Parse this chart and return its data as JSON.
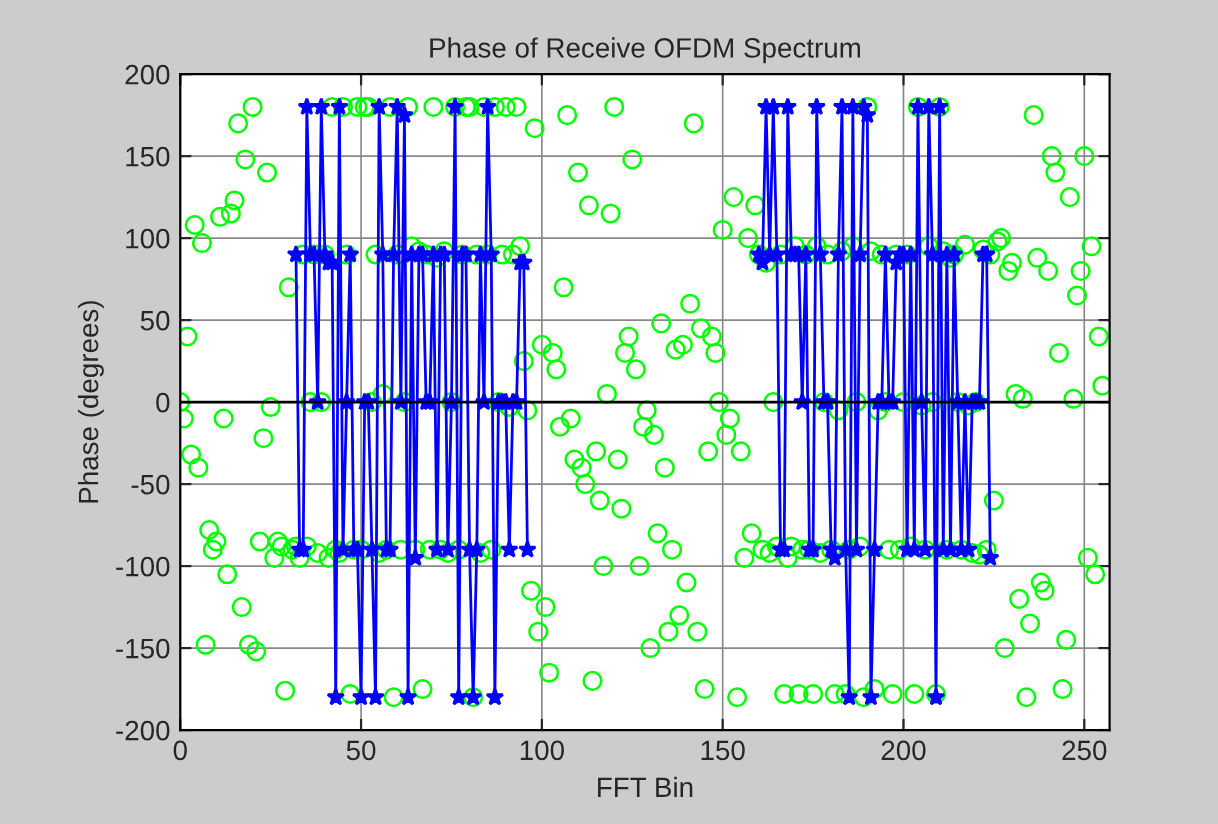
{
  "chart_data": {
    "type": "scatter",
    "x": [
      0,
      1,
      2,
      3,
      4,
      5,
      6,
      7,
      8,
      9,
      10,
      11,
      12,
      13,
      14,
      15,
      16,
      17,
      18,
      19,
      20,
      21,
      22,
      23,
      24,
      25,
      26,
      27,
      28,
      29,
      30,
      31,
      32,
      33,
      34,
      35,
      36,
      37,
      38,
      39,
      40,
      41,
      42,
      43,
      44,
      45,
      46,
      47,
      48,
      49,
      50,
      51,
      52,
      53,
      54,
      55,
      56,
      57,
      58,
      59,
      60,
      61,
      62,
      63,
      64,
      65,
      66,
      67,
      68,
      69,
      70,
      71,
      72,
      73,
      74,
      75,
      76,
      77,
      78,
      79,
      80,
      81,
      82,
      83,
      84,
      85,
      86,
      87,
      88,
      89,
      90,
      91,
      92,
      93,
      94,
      95,
      96,
      97,
      98,
      99,
      100,
      101,
      102,
      103,
      104,
      105,
      106,
      107,
      108,
      109,
      110,
      111,
      112,
      113,
      114,
      115,
      116,
      117,
      118,
      119,
      120,
      121,
      122,
      123,
      124,
      125,
      126,
      127,
      128,
      129,
      130,
      131,
      132,
      133,
      134,
      135,
      136,
      137,
      138,
      139,
      140,
      141,
      142,
      143,
      144,
      145,
      146,
      147,
      148,
      149,
      150,
      151,
      152,
      153,
      154,
      155,
      156,
      157,
      158,
      159,
      160,
      161,
      162,
      163,
      164,
      165,
      166,
      167,
      168,
      169,
      170,
      171,
      172,
      173,
      174,
      175,
      176,
      177,
      178,
      179,
      180,
      181,
      182,
      183,
      184,
      185,
      186,
      187,
      188,
      189,
      190,
      191,
      192,
      193,
      194,
      195,
      196,
      197,
      198,
      199,
      200,
      201,
      202,
      203,
      204,
      205,
      206,
      207,
      208,
      209,
      210,
      211,
      212,
      213,
      214,
      215,
      216,
      217,
      218,
      219,
      220,
      221,
      222,
      223,
      224,
      225,
      226,
      227,
      228,
      229,
      230,
      231,
      232,
      233,
      234,
      235,
      236,
      237,
      238,
      239,
      240,
      241,
      242,
      243,
      244,
      245,
      246,
      247,
      248,
      249,
      250,
      251,
      252,
      253,
      254,
      255
    ],
    "title": "Phase of Receive OFDM Spectrum",
    "xlabel": "FFT Bin",
    "ylabel": "Phase (degrees)",
    "xlim": [
      0,
      257
    ],
    "xticks": [
      0,
      50,
      100,
      150,
      200,
      250
    ],
    "ylim": [
      -200,
      200
    ],
    "yticks": [
      -200,
      -150,
      -100,
      -50,
      0,
      50,
      100,
      150,
      200
    ],
    "grid": true,
    "ref_lines": [
      {
        "axis": "y",
        "value": 0,
        "color": "#000000"
      }
    ],
    "series": [
      {
        "color": "#00ff00",
        "marker": "circle",
        "values": [
          0,
          -10,
          40,
          -32,
          108,
          -40,
          97,
          -148,
          -78,
          -90,
          -85,
          113,
          -10,
          -105,
          115,
          123,
          170,
          -125,
          148,
          -148,
          180,
          -152,
          -85,
          -22,
          140,
          -3,
          -95,
          -85,
          -88,
          -176,
          70,
          -90,
          -88,
          -95,
          90,
          -88,
          0,
          90,
          -92,
          0,
          90,
          -95,
          180,
          -90,
          -92,
          180,
          90,
          -178,
          -90,
          180,
          -90,
          180,
          180,
          0,
          90,
          -92,
          5,
          -90,
          180,
          -180,
          90,
          -90,
          0,
          180,
          95,
          -90,
          92,
          -175,
          90,
          -90,
          180,
          88,
          -90,
          92,
          -92,
          0,
          180,
          -90,
          90,
          180,
          180,
          -180,
          90,
          -92,
          180,
          90,
          -90,
          180,
          0,
          90,
          180,
          -3,
          90,
          180,
          95,
          25,
          -5,
          -115,
          167,
          -140,
          35,
          -125,
          -165,
          30,
          20,
          -15,
          70,
          175,
          -10,
          -35,
          140,
          -40,
          -50,
          120,
          -170,
          -30,
          -60,
          -100,
          5,
          115,
          180,
          -35,
          -65,
          30,
          40,
          148,
          20,
          -100,
          -15,
          -5,
          -150,
          -20,
          -80,
          48,
          -40,
          -140,
          -90,
          32,
          -130,
          35,
          -110,
          60,
          170,
          -140,
          45,
          -175,
          -30,
          40,
          30,
          0,
          105,
          -20,
          -10,
          125,
          -180,
          -30,
          -95,
          100,
          -80,
          120,
          90,
          -90,
          85,
          -92,
          0,
          -88,
          90,
          -178,
          -95,
          -88,
          95,
          -178,
          -90,
          90,
          -90,
          -178,
          95,
          -92,
          0,
          90,
          -90,
          -178,
          -5,
          92,
          -178,
          -90,
          95,
          0,
          -88,
          -180,
          180,
          92,
          -175,
          -5,
          90,
          0,
          -90,
          -178,
          90,
          -90,
          0,
          90,
          -88,
          -178,
          180,
          -2,
          -90,
          95,
          0,
          -178,
          180,
          92,
          -90,
          88,
          90,
          0,
          -90,
          96,
          -2,
          -92,
          0,
          -93,
          93,
          -90,
          90,
          -60,
          98,
          100,
          -150,
          80,
          85,
          5,
          -120,
          2,
          -180,
          -135,
          175,
          88,
          -110,
          -115,
          80,
          150,
          140,
          30,
          -175,
          -145,
          125,
          2,
          65,
          80,
          150,
          -95,
          95,
          -105,
          40,
          10
        ]
      },
      {
        "type": "line",
        "color": "#0000ff",
        "marker": "star",
        "line_style": "solid",
        "values": [
          null,
          null,
          null,
          null,
          null,
          null,
          null,
          null,
          null,
          null,
          null,
          null,
          null,
          null,
          null,
          null,
          null,
          null,
          null,
          null,
          null,
          null,
          null,
          null,
          null,
          null,
          null,
          null,
          null,
          null,
          null,
          null,
          90,
          -90,
          -90,
          180,
          90,
          90,
          0,
          180,
          90,
          85,
          85,
          -180,
          180,
          -90,
          0,
          90,
          -90,
          -90,
          -180,
          0,
          0,
          -90,
          -180,
          180,
          90,
          -90,
          -90,
          90,
          180,
          0,
          175,
          -180,
          90,
          -95,
          90,
          90,
          0,
          0,
          90,
          -90,
          90,
          90,
          -90,
          0,
          180,
          -180,
          90,
          90,
          -90,
          -180,
          -90,
          90,
          0,
          180,
          90,
          -180,
          0,
          0,
          0,
          -90,
          0,
          0,
          85,
          85,
          -90,
          null,
          null,
          null,
          null,
          null,
          null,
          null,
          null,
          null,
          null,
          null,
          null,
          null,
          null,
          null,
          null,
          null,
          null,
          null,
          null,
          null,
          null,
          null,
          null,
          null,
          null,
          null,
          null,
          null,
          null,
          null,
          null,
          null,
          null,
          null,
          null,
          null,
          null,
          null,
          null,
          null,
          null,
          null,
          null,
          null,
          null,
          null,
          null,
          null,
          null,
          null,
          null,
          null,
          null,
          null,
          null,
          null,
          null,
          null,
          null,
          null,
          null,
          null,
          90,
          85,
          180,
          90,
          180,
          90,
          -90,
          -90,
          180,
          90,
          90,
          90,
          0,
          90,
          -90,
          -90,
          180,
          90,
          0,
          0,
          -90,
          -95,
          90,
          180,
          -90,
          -180,
          180,
          -90,
          90,
          180,
          175,
          -180,
          -90,
          0,
          0,
          90,
          0,
          0,
          85,
          90,
          90,
          -90,
          90,
          -90,
          180,
          0,
          -90,
          180,
          90,
          -180,
          180,
          -90,
          90,
          -90,
          90,
          0,
          -90,
          0,
          -90,
          0,
          0,
          0,
          90,
          90,
          -95,
          null,
          null,
          null,
          null,
          null,
          null,
          null,
          null,
          null,
          null,
          null,
          null,
          null,
          null,
          null,
          null,
          null,
          null,
          null,
          null,
          null,
          null,
          null,
          null,
          null,
          null,
          null,
          null,
          null,
          null,
          null
        ]
      }
    ]
  }
}
